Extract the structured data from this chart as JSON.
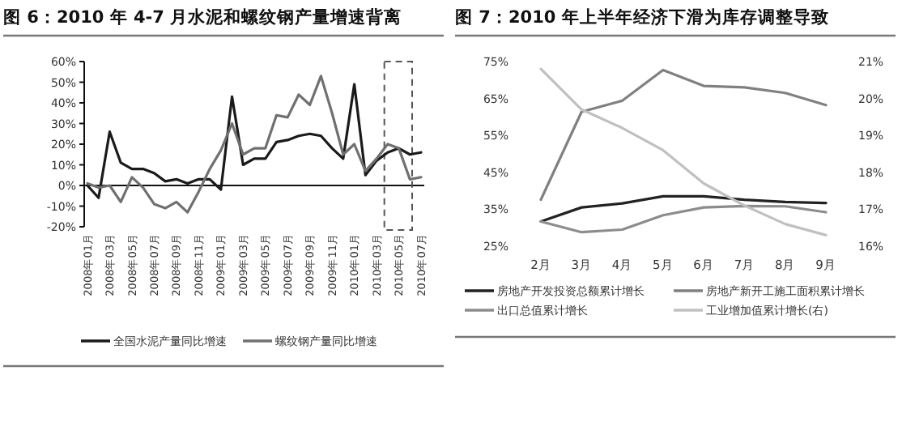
{
  "chart_data": [
    {
      "type": "line",
      "title": "图 6：2010 年 4-7 月水泥和螺纹钢产量增速背离",
      "categories": [
        "2008年01月",
        null,
        "2008年03月",
        null,
        "2008年05月",
        null,
        "2008年07月",
        null,
        "2008年09月",
        null,
        "2008年11月",
        null,
        "2009年01月",
        null,
        "2009年03月",
        null,
        "2009年05月",
        null,
        "2009年07月",
        null,
        "2009年09月",
        null,
        "2009年11月",
        null,
        "2010年01月",
        null,
        "2010年03月",
        null,
        "2010年05月",
        null,
        "2010年07月"
      ],
      "series": [
        {
          "name": "全国水泥产量同比增速",
          "color": "#1a1a1a",
          "values": [
            0,
            -6,
            26,
            11,
            8,
            8,
            6,
            2,
            3,
            1,
            3,
            3,
            -2,
            43,
            10,
            13,
            13,
            21,
            22,
            24,
            25,
            24,
            18,
            13,
            49,
            5,
            12,
            16,
            18,
            15,
            16
          ]
        },
        {
          "name": "螺纹钢产量同比增速",
          "color": "#707070",
          "values": [
            1,
            -1,
            0,
            -8,
            4,
            -1,
            -9,
            -11,
            -8,
            -13,
            -3,
            8,
            17,
            30,
            15,
            18,
            18,
            34,
            33,
            44,
            39,
            53,
            35,
            15,
            20,
            7,
            13,
            20,
            18,
            3,
            4
          ]
        }
      ],
      "ylim": [
        -20,
        60
      ],
      "yticks": [
        {
          "value": -20,
          "label": "-20%"
        },
        {
          "value": -10,
          "label": "-10%"
        },
        {
          "value": 0,
          "label": "0%"
        },
        {
          "value": 10,
          "label": "10%"
        },
        {
          "value": 20,
          "label": "20%"
        },
        {
          "value": 30,
          "label": "30%"
        },
        {
          "value": 40,
          "label": "40%"
        },
        {
          "value": 50,
          "label": "50%"
        },
        {
          "value": 60,
          "label": "60%"
        }
      ],
      "legend": "bottom"
    },
    {
      "type": "line",
      "title": "图 7：2010 年上半年经济下滑为库存调整导致",
      "categories": [
        "2月",
        "3月",
        "4月",
        "5月",
        "6月",
        "7月",
        "8月",
        "9月"
      ],
      "series": [
        {
          "name": "房地产开发投资总额累计增长",
          "color": "#222222",
          "values": [
            31.7,
            35.5,
            36.6,
            38.5,
            38.5,
            37.6,
            37,
            36.7
          ]
        },
        {
          "name": "房地产新开工施工面积累计增长",
          "color": "#808080",
          "values": [
            37.6,
            61.4,
            64.4,
            72.7,
            68.4,
            68,
            66.5,
            63.2
          ]
        },
        {
          "name": "出口总值累计增长",
          "color": "#8c8c8c",
          "values": [
            31.7,
            28.8,
            29.5,
            33.4,
            35.5,
            35.9,
            35.8,
            34.2
          ]
        },
        {
          "name": "工业增加值累计增长(右)",
          "color": "#c0c0c0",
          "axis": "y2",
          "values": [
            20.8,
            19.7,
            19.2,
            18.6,
            17.7,
            17.1,
            16.6,
            16.3
          ]
        }
      ],
      "ylim": [
        25,
        75
      ],
      "yticks": [
        {
          "value": 25,
          "label": "25%"
        },
        {
          "value": 35,
          "label": "35%"
        },
        {
          "value": 45,
          "label": "45%"
        },
        {
          "value": 55,
          "label": "55%"
        },
        {
          "value": 65,
          "label": "65%"
        },
        {
          "value": 75,
          "label": "75%"
        }
      ],
      "y2lim": [
        16,
        21
      ],
      "y2ticks": [
        {
          "value": 16,
          "label": "16%"
        },
        {
          "value": 17,
          "label": "17%"
        },
        {
          "value": 18,
          "label": "18%"
        },
        {
          "value": 19,
          "label": "19%"
        },
        {
          "value": 20,
          "label": "20%"
        },
        {
          "value": 21,
          "label": "21%"
        }
      ],
      "legend": "bottom"
    }
  ]
}
